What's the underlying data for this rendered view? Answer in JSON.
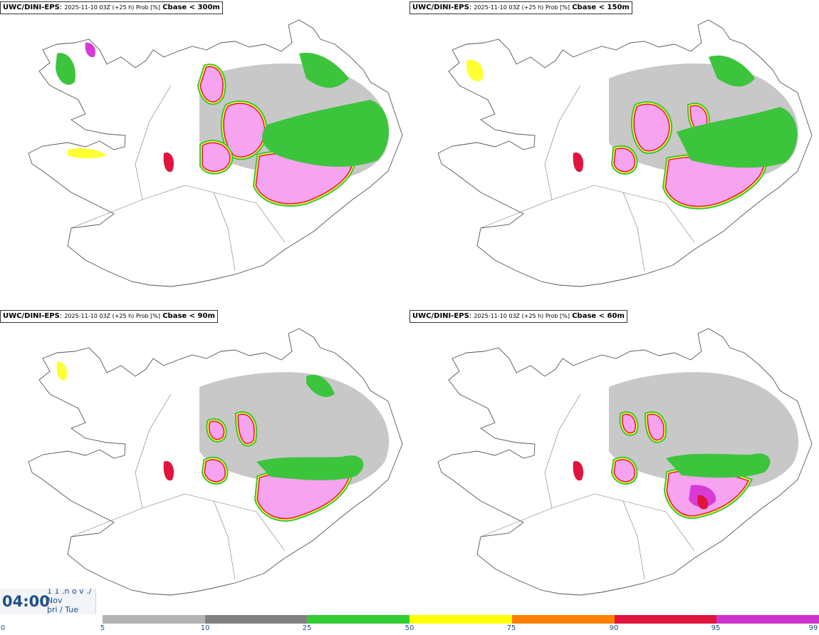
{
  "panels": [
    {
      "model": "UWC/DINI-EPS",
      "meta": "2025-11-10 03Z (+25 h) Prob [%]",
      "variable": "Cbase < 300m"
    },
    {
      "model": "UWC/DINI-EPS",
      "meta": "2025-11-10 03Z (+25 h) Prob [%]",
      "variable": "Cbase < 150m"
    },
    {
      "model": "UWC/DINI-EPS",
      "meta": "2025-11-10 03Z (+25 h) Prob [%]",
      "variable": "Cbase < 90m"
    },
    {
      "model": "UWC/DINI-EPS",
      "meta": "2025-11-10 03Z (+25 h) Prob [%]",
      "variable": "Cbase < 60m"
    }
  ],
  "valid_time": {
    "time": "04:00",
    "line1": "1 1 .n ó v ./",
    "line2": "Nov",
    "line3": "þri / Tue"
  },
  "legend": {
    "ticks": [
      "0",
      "5",
      "10",
      "25",
      "50",
      "75",
      "90",
      "95",
      "99"
    ],
    "colors": [
      "#b3b3b3",
      "#808080",
      "#33cc33",
      "#ffff00",
      "#ff7f00",
      "#e0143c",
      "#cc33cc",
      "#f5a6f0"
    ]
  },
  "map_colors": {
    "land_outline": "#555555",
    "low": "#9a9a9a",
    "green": "#3dc43d",
    "yellow": "#ffff33",
    "orange": "#ff8c1a",
    "red": "#e0143c",
    "magenta": "#d63bd6",
    "pink": "#f6a3f0"
  }
}
